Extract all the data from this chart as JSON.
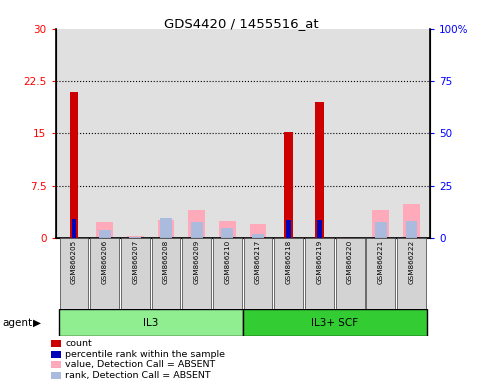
{
  "title": "GDS4420 / 1455516_at",
  "samples": [
    "GSM866205",
    "GSM866206",
    "GSM866207",
    "GSM866208",
    "GSM866209",
    "GSM866210",
    "GSM866217",
    "GSM866218",
    "GSM866219",
    "GSM866220",
    "GSM866221",
    "GSM866222"
  ],
  "count": [
    21.0,
    0,
    0,
    0,
    0,
    0,
    0,
    15.2,
    19.5,
    0,
    0,
    0
  ],
  "percentile_rank": [
    9.0,
    0,
    0,
    0,
    0,
    0,
    0,
    8.5,
    8.5,
    0,
    0,
    0
  ],
  "value_absent": [
    0,
    7.5,
    1.0,
    8.5,
    13.5,
    8.0,
    6.5,
    0,
    0,
    0.5,
    13.5,
    16.5
  ],
  "rank_absent": [
    0,
    4.0,
    0.5,
    9.5,
    7.5,
    5.0,
    2.0,
    0,
    0,
    0,
    7.5,
    8.0
  ],
  "left_ylim": [
    0,
    30
  ],
  "left_yticks": [
    0,
    7.5,
    15,
    22.5,
    30
  ],
  "right_ylim": [
    0,
    100
  ],
  "right_yticks": [
    0,
    25,
    50,
    75,
    100
  ],
  "color_count": "#CC0000",
  "color_percentile": "#0000BB",
  "color_value_absent": "#FFAABB",
  "color_rank_absent": "#AABBDD",
  "color_bg_plot": "#E0E0E0",
  "color_bg_labels": "#C8C8C8",
  "color_il3": "#90EE90",
  "color_il3scf": "#33CC33",
  "group1_label": "IL3",
  "group1_indices": [
    0,
    5
  ],
  "group2_label": "IL3+ SCF",
  "group2_indices": [
    6,
    11
  ],
  "agent_text": "agent",
  "legend_items": [
    {
      "label": "count",
      "color": "#CC0000"
    },
    {
      "label": "percentile rank within the sample",
      "color": "#0000BB"
    },
    {
      "label": "value, Detection Call = ABSENT",
      "color": "#FFAABB"
    },
    {
      "label": "rank, Detection Call = ABSENT",
      "color": "#AABBDD"
    }
  ]
}
